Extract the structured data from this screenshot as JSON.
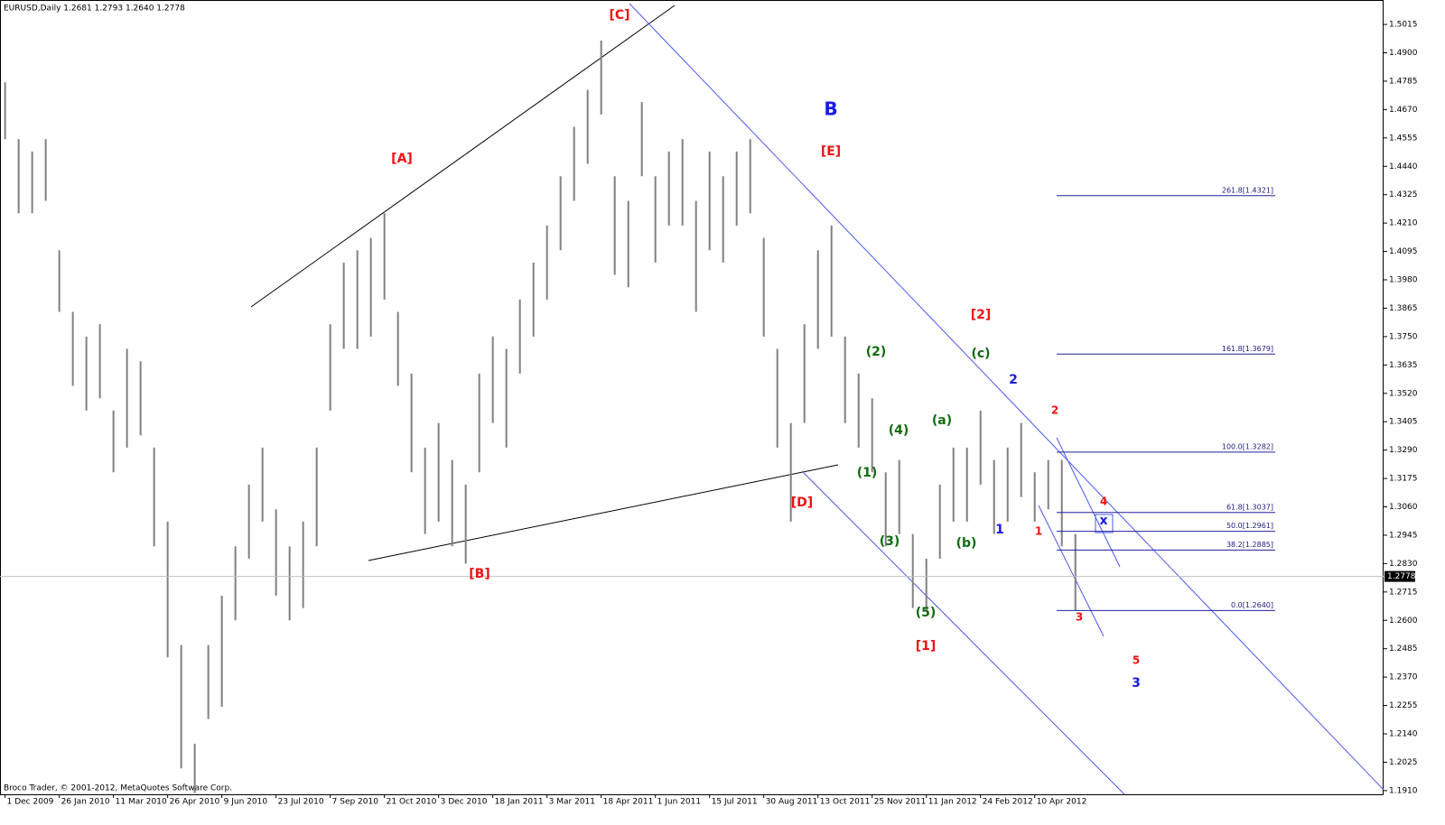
{
  "chart_data": {
    "type": "ohlc",
    "title": "EURUSD,Daily  1.2681 1.2793 1.2640 1.2778",
    "footer": "Broco Trader, © 2001-2012, MetaQuotes Software Corp.",
    "color": "#808080",
    "last_price": 1.2778,
    "xlim": [
      -3,
      814
    ],
    "ylim": [
      1.1895,
      1.5114
    ],
    "x": [
      0,
      8,
      16,
      24,
      32,
      40,
      48,
      56,
      64,
      72,
      80,
      88,
      96,
      104,
      112,
      120,
      128,
      136,
      144,
      152,
      160,
      168,
      176,
      184,
      192,
      200,
      208,
      216,
      224,
      232,
      240,
      248,
      256,
      264,
      272,
      280,
      288,
      296,
      304,
      312,
      320,
      328,
      336,
      344,
      352,
      360,
      368,
      376,
      384,
      392,
      400,
      408,
      416,
      424,
      432,
      440,
      448,
      456,
      464,
      472,
      480,
      488,
      496,
      504,
      512,
      520,
      528,
      536,
      544,
      552,
      560,
      568,
      576,
      584,
      592,
      600,
      608,
      616,
      624,
      632
    ],
    "high": [
      1.478,
      1.455,
      1.45,
      1.455,
      1.41,
      1.385,
      1.375,
      1.38,
      1.345,
      1.37,
      1.365,
      1.33,
      1.3,
      1.25,
      1.21,
      1.25,
      1.27,
      1.29,
      1.315,
      1.33,
      1.305,
      1.29,
      1.3,
      1.33,
      1.38,
      1.405,
      1.41,
      1.415,
      1.425,
      1.385,
      1.36,
      1.33,
      1.34,
      1.325,
      1.315,
      1.36,
      1.375,
      1.37,
      1.39,
      1.405,
      1.42,
      1.44,
      1.46,
      1.475,
      1.495,
      1.44,
      1.43,
      1.47,
      1.44,
      1.45,
      1.455,
      1.43,
      1.45,
      1.44,
      1.45,
      1.455,
      1.415,
      1.37,
      1.34,
      1.38,
      1.41,
      1.42,
      1.375,
      1.36,
      1.35,
      1.32,
      1.325,
      1.295,
      1.285,
      1.315,
      1.33,
      1.33,
      1.345,
      1.325,
      1.33,
      1.34,
      1.32,
      1.325,
      1.325,
      1.295
    ],
    "low": [
      1.455,
      1.425,
      1.425,
      1.43,
      1.385,
      1.355,
      1.345,
      1.35,
      1.32,
      1.33,
      1.335,
      1.29,
      1.245,
      1.2,
      1.19,
      1.22,
      1.225,
      1.26,
      1.285,
      1.3,
      1.27,
      1.26,
      1.265,
      1.29,
      1.345,
      1.37,
      1.37,
      1.375,
      1.39,
      1.355,
      1.32,
      1.295,
      1.3,
      1.29,
      1.283,
      1.32,
      1.34,
      1.33,
      1.36,
      1.375,
      1.39,
      1.41,
      1.43,
      1.445,
      1.465,
      1.4,
      1.395,
      1.44,
      1.405,
      1.42,
      1.42,
      1.385,
      1.41,
      1.405,
      1.42,
      1.425,
      1.375,
      1.33,
      1.3,
      1.34,
      1.37,
      1.375,
      1.34,
      1.33,
      1.32,
      1.29,
      1.295,
      1.265,
      1.264,
      1.285,
      1.3,
      1.3,
      1.315,
      1.295,
      1.3,
      1.31,
      1.3,
      1.305,
      1.29,
      1.264
    ],
    "yticks": [
      1.5015,
      {
        "value": 1.49,
        "label": "1.4900"
      },
      1.4785,
      {
        "value": 1.467,
        "label": "1.4670"
      },
      1.4555,
      {
        "value": 1.444,
        "label": "1.4440"
      },
      1.4325,
      {
        "value": 1.421,
        "label": "1.4210"
      },
      1.4095,
      {
        "value": 1.398,
        "label": "1.3980"
      },
      1.3865,
      {
        "value": 1.375,
        "label": "1.3750"
      },
      1.3635,
      {
        "value": 1.352,
        "label": "1.3520"
      },
      1.3405,
      {
        "value": 1.329,
        "label": "1.3290"
      },
      1.3175,
      {
        "value": 1.306,
        "label": "1.3060"
      },
      1.2945,
      {
        "value": 1.283,
        "label": "1.2830"
      },
      1.2715,
      {
        "value": 1.26,
        "label": "1.2600"
      },
      1.2485,
      {
        "value": 1.237,
        "label": "1.2370"
      },
      1.2255,
      {
        "value": 1.214,
        "label": "1.2140"
      },
      1.2025,
      {
        "value": 1.191,
        "label": "1.1910"
      }
    ],
    "xticks": [
      {
        "value": 0,
        "label": "1 Dec 2009"
      },
      {
        "value": 32,
        "label": "26 Jan 2010"
      },
      {
        "value": 64,
        "label": "11 Mar 2010"
      },
      {
        "value": 96,
        "label": "26 Apr 2010"
      },
      {
        "value": 128,
        "label": "9 Jun 2010"
      },
      {
        "value": 160,
        "label": "23 Jul 2010"
      },
      {
        "value": 192,
        "label": "7 Sep 2010"
      },
      {
        "value": 224,
        "label": "21 Oct 2010"
      },
      {
        "value": 256,
        "label": "3 Dec 2010"
      },
      {
        "value": 288,
        "label": "18 Jan 2011"
      },
      {
        "value": 320,
        "label": "3 Mar 2011"
      },
      {
        "value": 352,
        "label": "18 Apr 2011"
      },
      {
        "value": 384,
        "label": "1 Jun 2011"
      },
      {
        "value": 416,
        "label": "15 Jul 2011"
      },
      {
        "value": 448,
        "label": "30 Aug 2011"
      },
      {
        "value": 480,
        "label": "13 Oct 2011"
      },
      {
        "value": 512,
        "label": "25 Nov 2011"
      },
      {
        "value": 544,
        "label": "11 Jan 2012"
      },
      {
        "value": 576,
        "label": "24 Feb 2012"
      },
      {
        "value": 608,
        "label": "10 Apr 2012"
      }
    ],
    "fib_levels": [
      {
        "value": 1.4321,
        "label": "261.8[1.4321]"
      },
      {
        "value": 1.3679,
        "label": "161.8[1.3679]"
      },
      {
        "value": 1.3282,
        "label": "100.0[1.3282]"
      },
      {
        "value": 1.3037,
        "label": "61.8[1.3037]"
      },
      {
        "value": 1.2961,
        "label": "50.0[1.2961]"
      },
      {
        "value": 1.2885,
        "label": "38.2[1.2885]"
      },
      {
        "value": 1.264,
        "label": "0.0[1.2640]"
      }
    ],
    "annotations": [
      "[C]",
      "[A]",
      "B",
      "[E]",
      "[2]",
      "(2)",
      "(c)",
      "2",
      "2",
      "(a)",
      "(4)",
      "(1)",
      "[D]",
      "4",
      "1",
      "1",
      "(3)",
      "(b)",
      "[B]",
      "(5)",
      "3",
      "[1]",
      "5",
      "3",
      "x"
    ]
  }
}
